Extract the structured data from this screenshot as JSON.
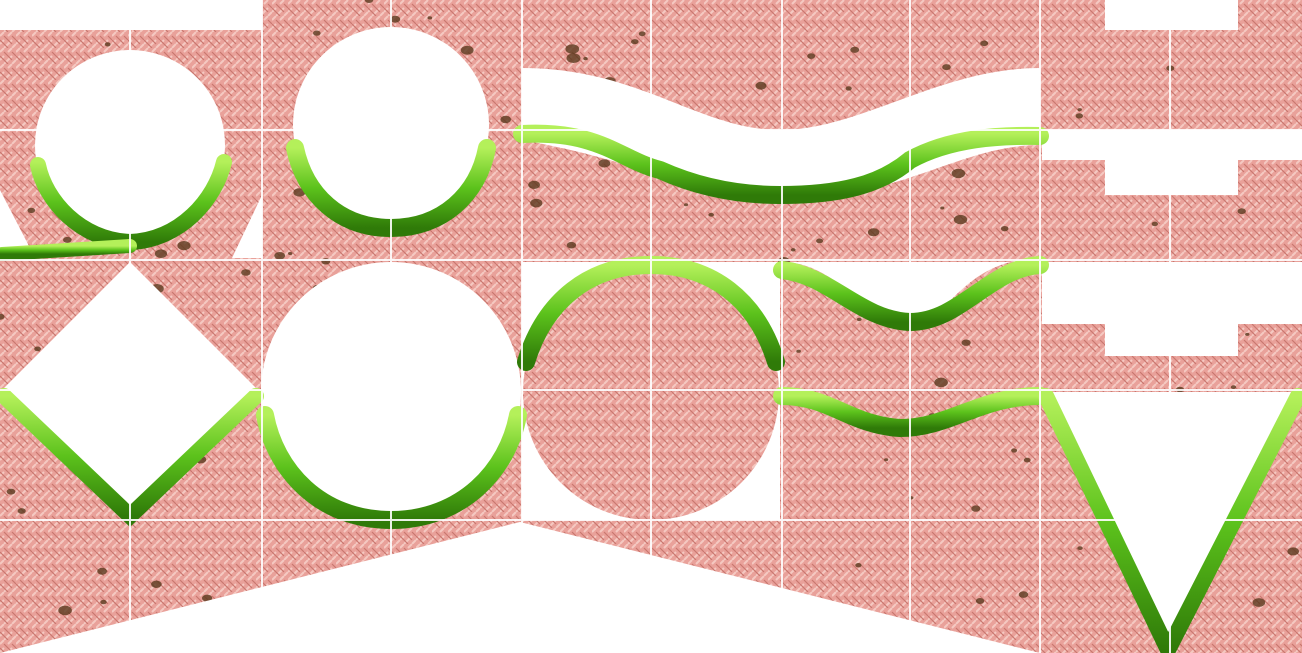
{
  "tileset": {
    "colors": {
      "background": "#ffffff",
      "dirt_base": "#e9a19a",
      "dirt_light": "#f5c9c2",
      "dirt_dark": "#c9776f",
      "rock": "#5a3a1e",
      "grass_light": "#9ee84a",
      "grass": "#5cc21c",
      "grass_dark": "#2f7a08",
      "grid_line": "#ffffff"
    }
  }
}
